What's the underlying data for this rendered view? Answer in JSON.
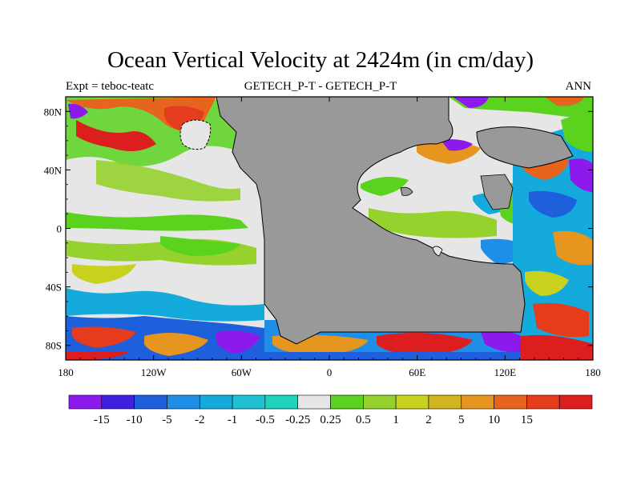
{
  "header": {
    "title": "Ocean Vertical Velocity at 2424m (in cm/day)",
    "left_label": "Expt = teboc-teatc",
    "center_label": "GETECH_P-T - GETECH_P-T",
    "right_label": "ANN"
  },
  "axes": {
    "lat_ticks": [
      {
        "label": "80N",
        "lat": 80
      },
      {
        "label": "40N",
        "lat": 40
      },
      {
        "label": "0",
        "lat": 0
      },
      {
        "label": "40S",
        "lat": -40
      },
      {
        "label": "80S",
        "lat": -80
      }
    ],
    "lon_ticks": [
      {
        "label": "180",
        "lon": -180
      },
      {
        "label": "120W",
        "lon": -120
      },
      {
        "label": "60W",
        "lon": -60
      },
      {
        "label": "0",
        "lon": 0
      },
      {
        "label": "60E",
        "lon": 60
      },
      {
        "label": "120E",
        "lon": 120
      },
      {
        "label": "180",
        "lon": 180
      }
    ],
    "lat_range": [
      -90,
      90
    ],
    "lon_range": [
      -180,
      180
    ]
  },
  "colorbar": {
    "colors": [
      "#8c1aec",
      "#4020e0",
      "#1e5fdc",
      "#1e8ee6",
      "#14aadc",
      "#1ec0d2",
      "#1ed2be",
      "#e6e6e6",
      "#5ad21e",
      "#96d22e",
      "#c8d21e",
      "#d2b41e",
      "#e6961e",
      "#e6641e",
      "#e63c1e",
      "#dc1e1e"
    ],
    "labels": [
      "-15",
      "-10",
      "-5",
      "-2",
      "-1",
      "-0.5",
      "-0.25",
      "0.25",
      "0.5",
      "1",
      "2",
      "5",
      "10",
      "15"
    ]
  },
  "colors": {
    "land": "#999999",
    "coast": "#000000"
  }
}
